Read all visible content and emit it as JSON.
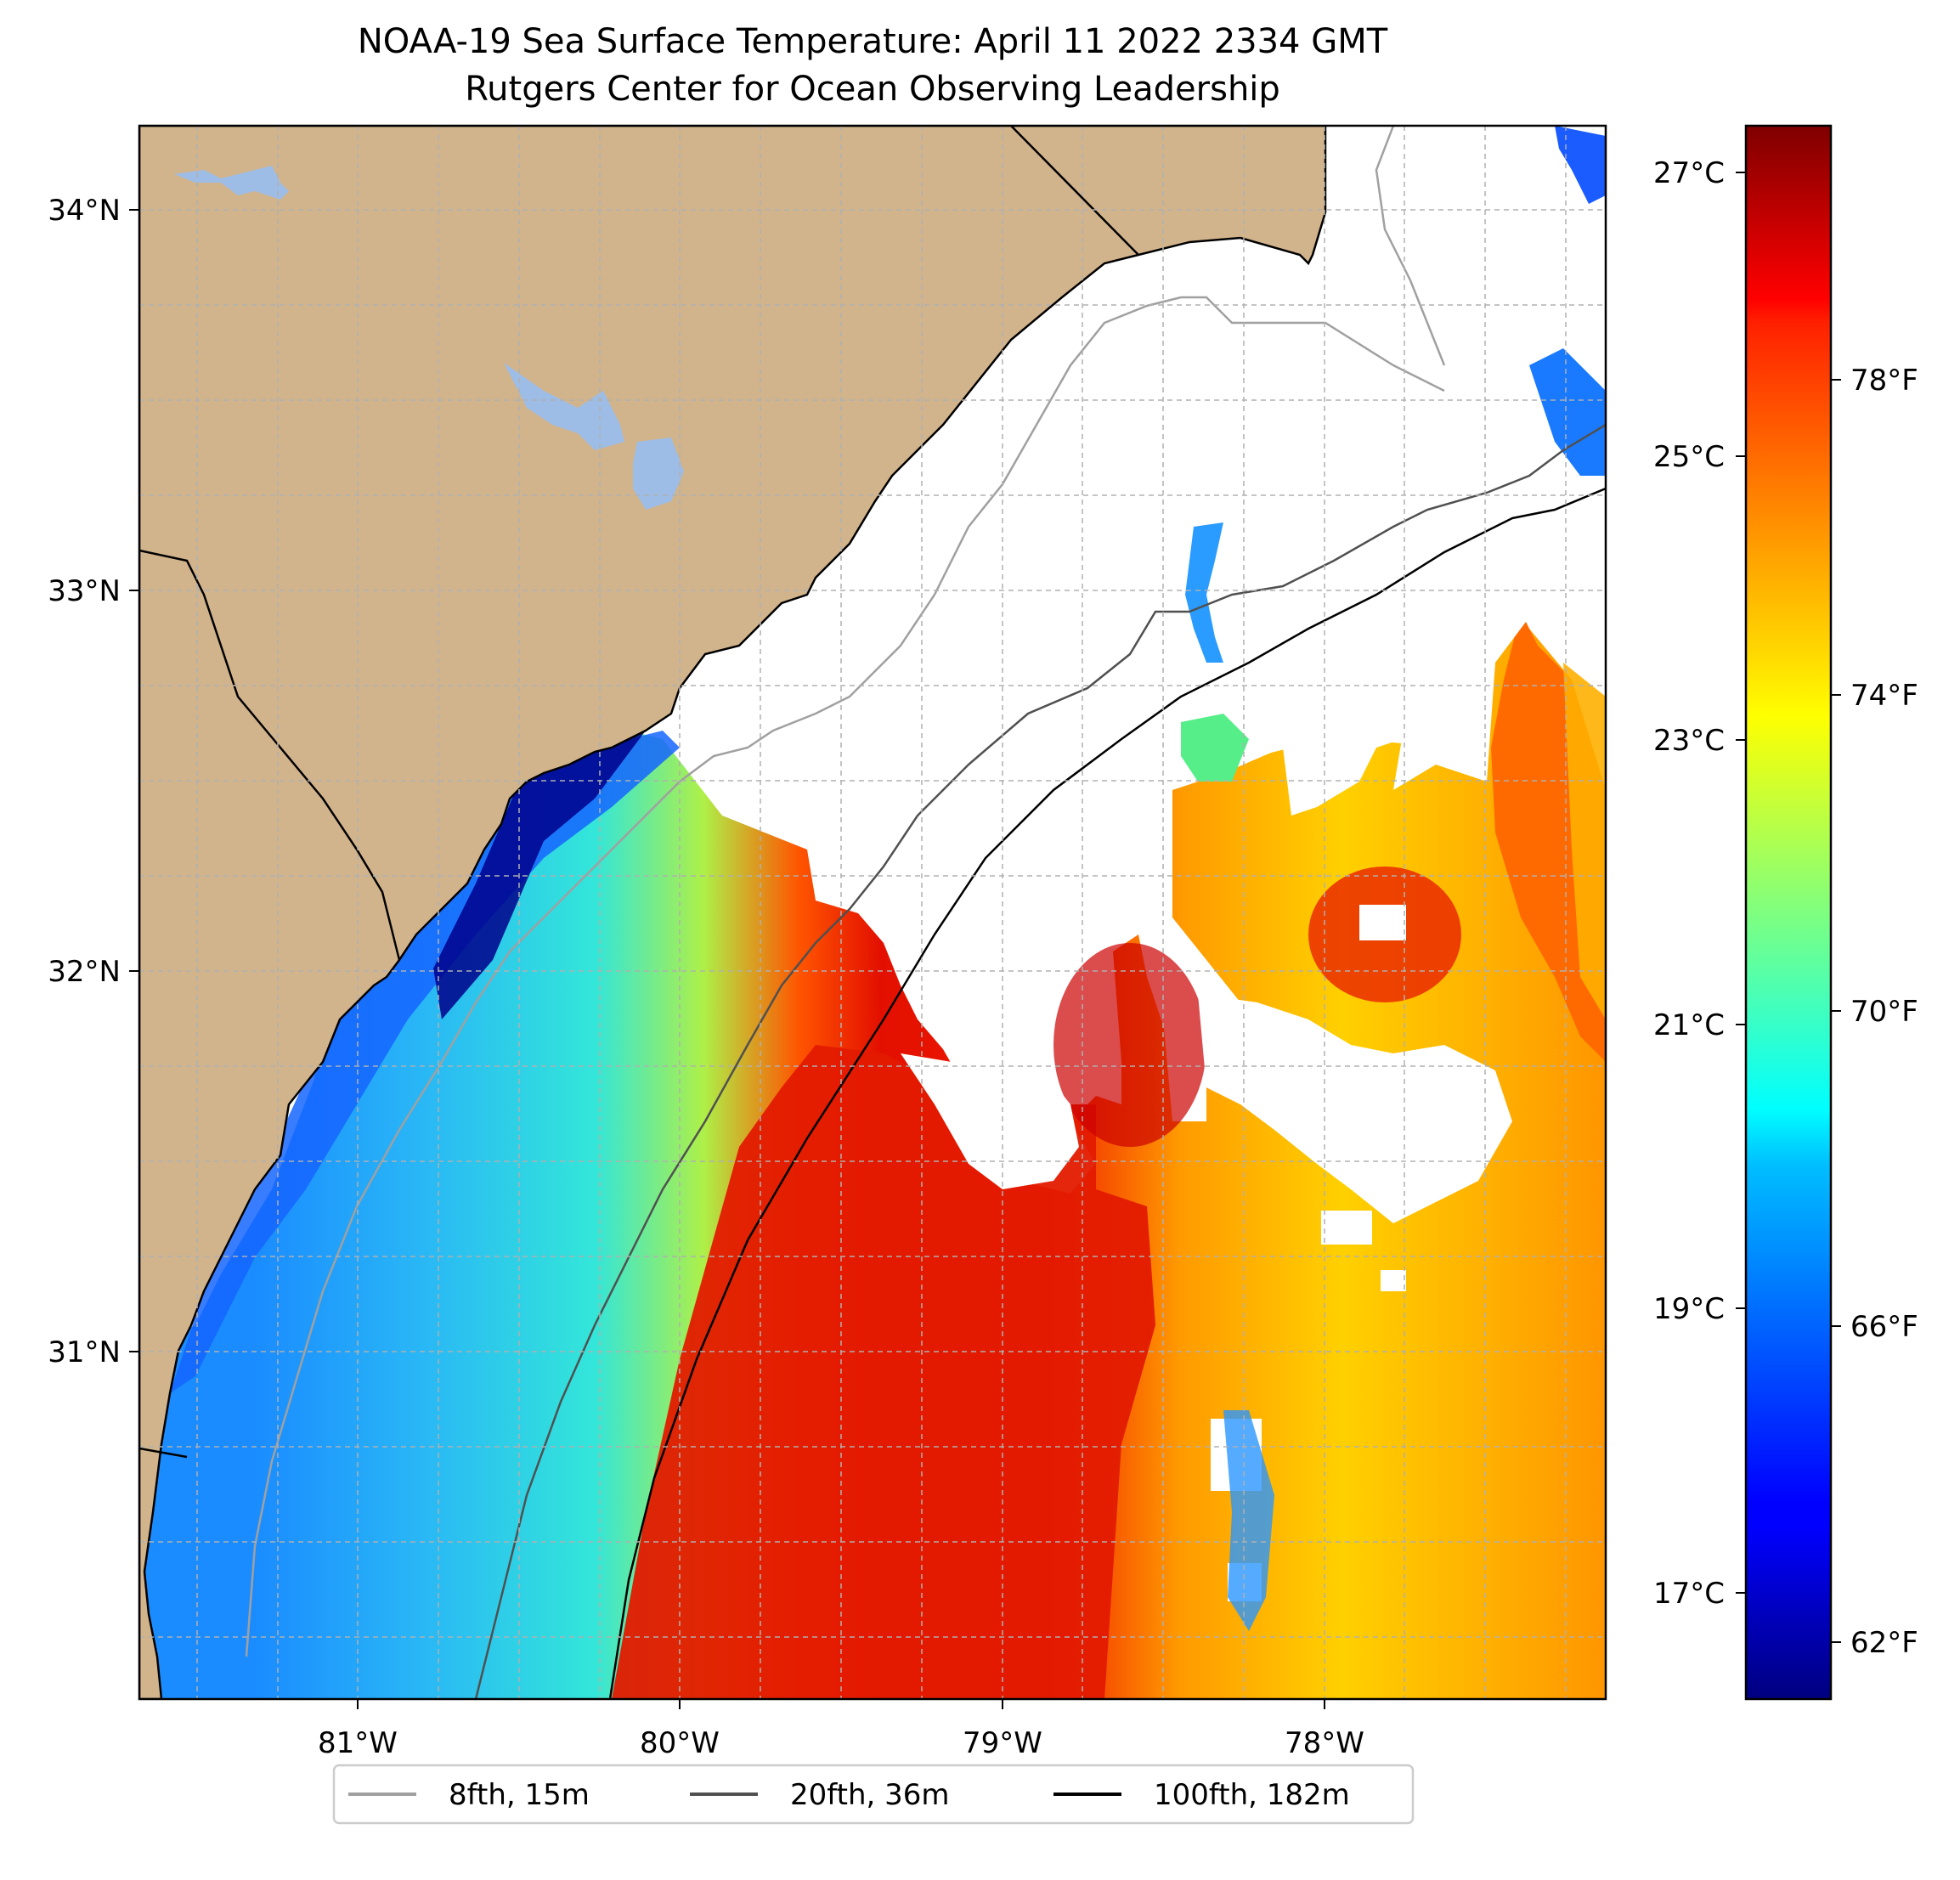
{
  "title": {
    "line1": "NOAA-19 Sea Surface Temperature: April 11 2022 2334 GMT",
    "line2": "Rutgers Center for Ocean Observing Leadership"
  },
  "chart_data": {
    "type": "heatmap",
    "xlabel": "",
    "ylabel": "",
    "xlim": [
      -81.68,
      -77.12
    ],
    "ylim": [
      30.07,
      34.22
    ],
    "lon_ticks": [
      -81,
      -80,
      -79,
      -78
    ],
    "lon_tick_labels": [
      "81°W",
      "80°W",
      "79°W",
      "78°W"
    ],
    "lat_ticks": [
      34,
      33,
      32,
      31
    ],
    "lat_tick_labels": [
      "34°N",
      "33°N",
      "32°N",
      "31°N"
    ],
    "colorbar": {
      "colormap": "jet",
      "range_c": [
        16.0,
        27.4
      ],
      "celsius_ticks": [
        27,
        25,
        23,
        21,
        19,
        17
      ],
      "celsius_labels": [
        "27°C",
        "25°C",
        "23°C",
        "21°C",
        "19°C",
        "17°C"
      ],
      "fahrenheit_ticks": [
        78,
        74,
        70,
        66,
        62
      ],
      "fahrenheit_labels": [
        "78°F",
        "74°F",
        "70°F",
        "66°F",
        "62°F"
      ]
    },
    "legend": {
      "placement": "bottom-center",
      "entries": [
        {
          "label": "8fth, 15m",
          "color": "#a0a0a0"
        },
        {
          "label": "20fth, 36m",
          "color": "#505050"
        },
        {
          "label": "100fth, 182m",
          "color": "#000000"
        }
      ]
    }
  },
  "colors": {
    "land": "#d2b48c",
    "lake": "#9dbde6",
    "coast": "#000000",
    "cloud": "#ffffff",
    "grid": "#b0b0b0"
  }
}
